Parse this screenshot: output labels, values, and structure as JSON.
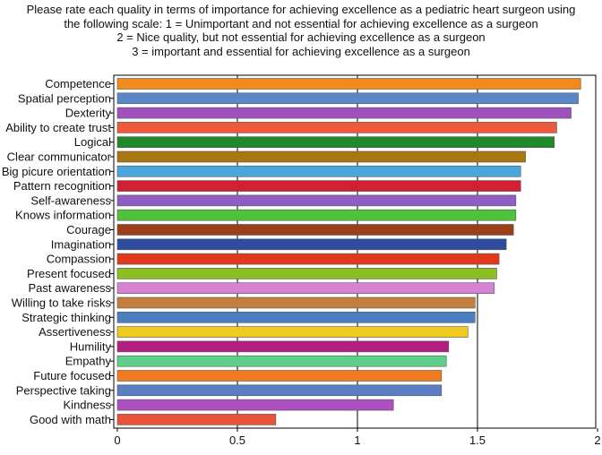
{
  "title_lines": [
    "Please rate each quality in terms of importance for achieving excellence as a pediatric heart surgeon using",
    "the following scale: 1 = Unimportant and not essential for achieving excellence as a surgeon",
    "2 = Nice quality, but not essential for achieving excellence as a surgeon",
    "3 = important and essential for achieving excellence as a surgeon"
  ],
  "chart_data": {
    "type": "bar",
    "orientation": "horizontal",
    "categories": [
      "Competence",
      "Spatial perception",
      "Dexterity",
      "Ability to create trust",
      "Logical",
      "Clear communicator",
      "Big picure orientation",
      "Pattern recognition",
      "Self-awareness",
      "Knows information",
      "Courage",
      "Imagination",
      "Compassion",
      "Present focused",
      "Past awareness",
      "Willing to take risks",
      "Strategic thinking",
      "Assertiveness",
      "Humility",
      "Empathy",
      "Future focused",
      "Perspective taking",
      "Kindness",
      "Good with math"
    ],
    "values": [
      1.93,
      1.92,
      1.89,
      1.83,
      1.82,
      1.7,
      1.68,
      1.68,
      1.66,
      1.66,
      1.65,
      1.62,
      1.59,
      1.58,
      1.57,
      1.49,
      1.49,
      1.46,
      1.38,
      1.37,
      1.35,
      1.35,
      1.15,
      0.66
    ],
    "colors": [
      "#F28A1E",
      "#5B87C8",
      "#A052BC",
      "#EE5A3C",
      "#1E8A2A",
      "#A8780F",
      "#49A7DD",
      "#D11F34",
      "#8F5EC4",
      "#4FC13B",
      "#9B3F1A",
      "#2F4B9E",
      "#E2391C",
      "#8CBE21",
      "#D882D6",
      "#C47F3E",
      "#4C7FC2",
      "#F0CB1F",
      "#B41E7F",
      "#5DD18C",
      "#F07C1D",
      "#5B7EC2",
      "#AC4FBF",
      "#E8533A"
    ],
    "xlim": [
      0,
      2
    ],
    "xticks": [
      "0",
      "0.5",
      "1",
      "1.5",
      "2"
    ],
    "xtick_values": [
      0,
      0.5,
      1,
      1.5,
      2
    ],
    "grid": "vertical-major"
  }
}
